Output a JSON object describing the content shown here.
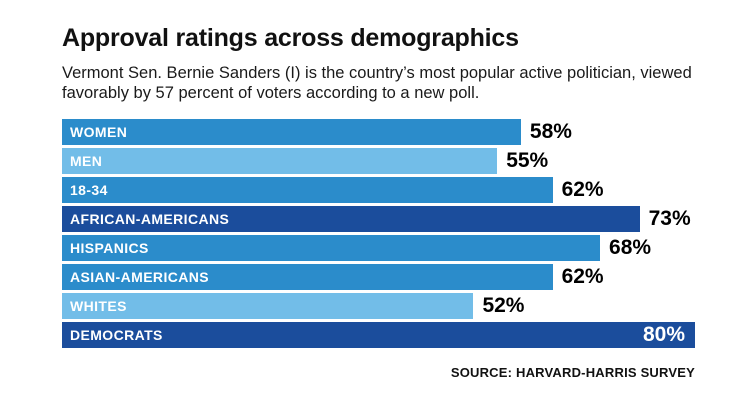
{
  "title": "Approval ratings across demographics",
  "subtitle": "Vermont Sen. Bernie Sanders (I) is the country’s most popular active politician, viewed favorably by 57 percent of voters according to a new poll.",
  "source": "SOURCE: HARVARD-HARRIS SURVEY",
  "colors": {
    "dark": "#1b4d9c",
    "medium": "#2b8ccb",
    "light": "#72bde8",
    "value_text": "#000000",
    "value_text_inside": "#ffffff"
  },
  "chart_data": {
    "type": "bar",
    "orientation": "horizontal",
    "title": "Approval ratings across demographics",
    "categories": [
      "WOMEN",
      "MEN",
      "18-34",
      "AFRICAN-AMERICANS",
      "HISPANICS",
      "ASIAN-AMERICANS",
      "WHITES",
      "DEMOCRATS"
    ],
    "values": [
      58,
      55,
      62,
      73,
      68,
      62,
      52,
      80
    ],
    "value_labels": [
      "58%",
      "55%",
      "62%",
      "73%",
      "68%",
      "62%",
      "52%",
      "80%"
    ],
    "bar_colors": [
      "medium",
      "light",
      "medium",
      "dark",
      "medium",
      "medium",
      "light",
      "dark"
    ],
    "label_inside": [
      false,
      false,
      false,
      false,
      false,
      false,
      false,
      true
    ],
    "xlim": [
      0,
      80
    ],
    "xlabel": "",
    "ylabel": "",
    "grid": false,
    "legend": false
  }
}
